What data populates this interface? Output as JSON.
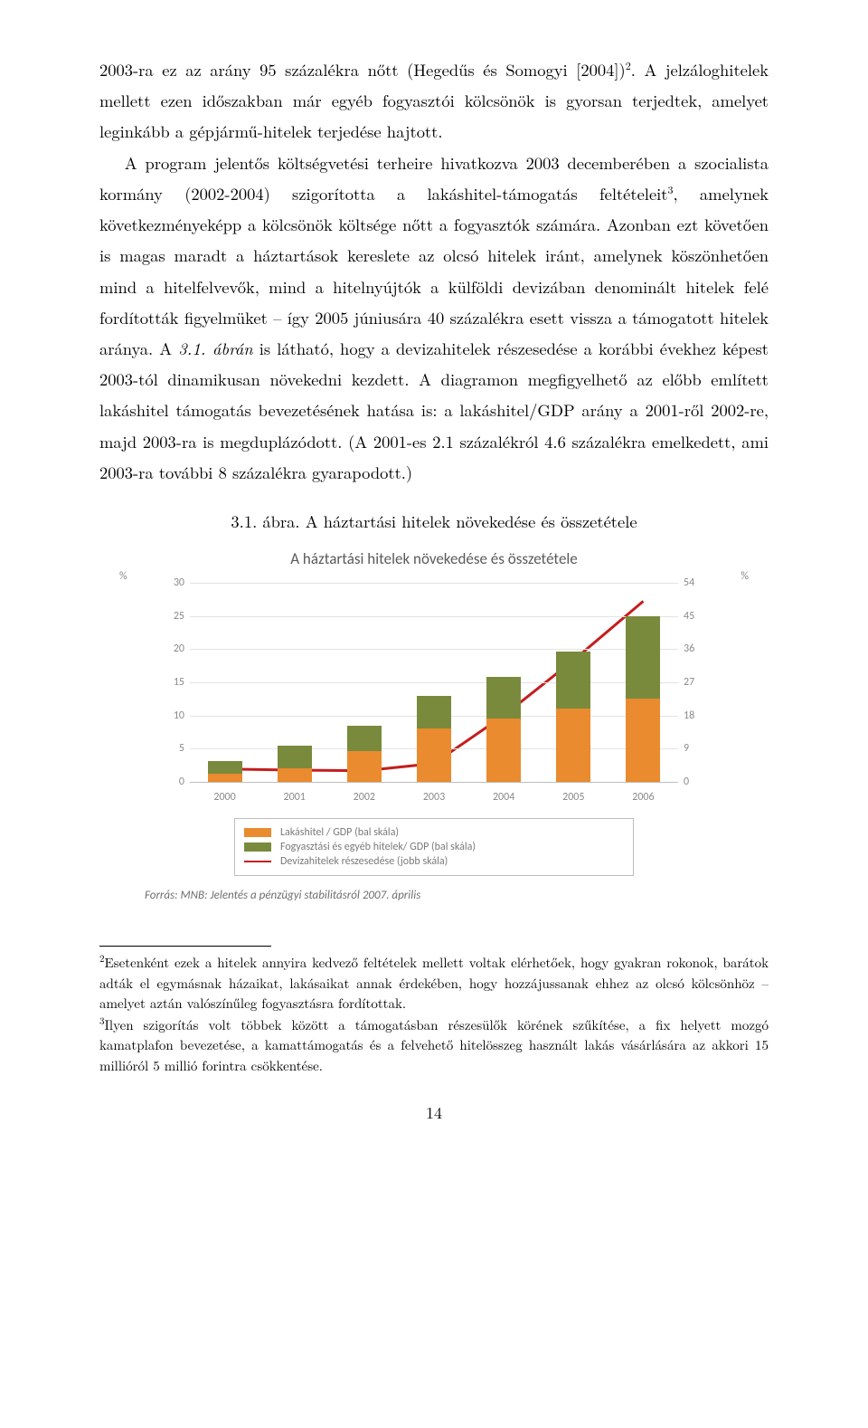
{
  "para1_a": "2003-ra ez az arány 95 százalékra nőtt (Hegedűs és Somogyi [2004])",
  "para1_sup": "2",
  "para1_b": ". A jelzáloghitelek mellett ezen időszakban már egyéb fogyasztói kölcsönök is gyorsan terjedtek, amelyet leginkább a gépjármű-hitelek terjedése hajtott.",
  "para2_a": "A program jelentős költségvetési terheire hivatkozva 2003 decemberében a szocialista kormány (2002-2004) szigorította a lakáshitel-támogatás feltételeit",
  "para2_sup": "3",
  "para2_b": ", amelynek következményeképp a kölcsönök költsége nőtt a fogyasztók számára. Azonban ezt követően is magas maradt a háztartások kereslete az olcsó hitelek iránt, amelynek köszönhetően mind a hitelfelvevők, mind a hitelnyújtók a külföldi devizában denominált hitelek felé fordították figyelmüket – így 2005 júniusára 40 százalékra esett vissza a támogatott hitelek aránya. A ",
  "para2_it": "3.1. ábrán",
  "para2_c": " is látható, hogy a devizahitelek részesedése a korábbi évekhez képest 2003-tól dinamikusan növekedni kezdett. A diagramon megfigyelhető az előbb említett lakáshitel támogatás bevezetésének hatása is: a lakáshitel/GDP arány a 2001-ről 2002-re, majd 2003-ra is megduplázódott. (A 2001-es 2.1 százalékról 4.6 százalékra emelkedett, ami 2003-ra további 8 százalékra gyarapodott.)",
  "fig_caption": "3.1. ábra. A háztartási hitelek növekedése és összetétele",
  "chart": {
    "title": "A háztartási hitelek növekedése és összetétele",
    "y_unit_left": "%",
    "y_unit_right": "%",
    "categories": [
      "2000",
      "2001",
      "2002",
      "2003",
      "2004",
      "2005",
      "2006"
    ],
    "left_axis": {
      "min": 0,
      "max": 30,
      "ticks": [
        0,
        5,
        10,
        15,
        20,
        25,
        30
      ]
    },
    "right_axis": {
      "min": 0,
      "max": 54,
      "ticks": [
        0,
        9,
        18,
        27,
        36,
        45,
        54
      ]
    },
    "series_a": {
      "label": "Lakáshitel / GDP (bal skála)",
      "color": "#e98b2e",
      "values": [
        1.2,
        2.1,
        4.6,
        8.0,
        9.5,
        11.0,
        12.5
      ]
    },
    "series_b": {
      "label": "Fogyasztási és egyéb hitelek/ GDP (bal skála)",
      "color": "#7a8a3c",
      "values": [
        2.0,
        3.4,
        3.8,
        5.0,
        6.3,
        8.7,
        12.5
      ]
    },
    "line": {
      "label": "Devizahitelek részesedése (jobb skála)",
      "color": "#c51d1d",
      "values": [
        3.5,
        3.2,
        3.0,
        5.0,
        18.0,
        33.0,
        49.0
      ]
    },
    "grid_color": "#e3e3e3",
    "axis_label_color": "#8a8a8a",
    "axis_label_fontsize": 12
  },
  "source_line": "Forrás: MNB: Jelentés a pénzügyi stabilitásról 2007. április",
  "fn2_sup": "2",
  "fn2": "Esetenként ezek a hitelek annyira kedvező feltételek mellett voltak elérhetőek, hogy gyakran rokonok, barátok adták el egymásnak házaikat, lakásaikat annak érdekében, hogy hozzájussanak ehhez az olcsó kölcsönhöz – amelyet aztán valószínűleg fogyasztásra fordítottak.",
  "fn3_sup": "3",
  "fn3": "Ilyen szigorítás volt többek között a támogatásban részesülők körének szűkítése, a fix helyett mozgó kamatplafon bevezetése, a kamattámogatás és a felvehető hitelösszeg használt lakás vásárlására az akkori 15 millióról 5 millió forintra csökkentése.",
  "page_number": "14"
}
